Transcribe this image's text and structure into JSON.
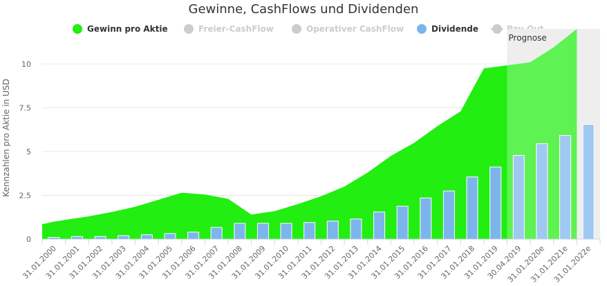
{
  "chart_data": {
    "type": "area",
    "title": "Gewinne, CashFlows und Dividenden",
    "ylabel": "Kennzahlen pro Aktie in USD",
    "xlabel": "",
    "ylim": [
      0,
      12
    ],
    "yticks": [
      0,
      2.5,
      5,
      7.5,
      10
    ],
    "ytick_labels": [
      "0",
      "2.5",
      "5",
      "7.5",
      "10"
    ],
    "categories": [
      "31.01.2000",
      "31.01.2001",
      "31.01.2002",
      "31.01.2003",
      "31.01.2004",
      "31.01.2005",
      "31.01.2006",
      "31.01.2007",
      "31.01.2008",
      "31.01.2009",
      "31.01.2010",
      "31.01.2011",
      "31.01.2012",
      "31.01.2013",
      "31.01.2014",
      "31.01.2015",
      "31.01.2016",
      "31.01.2017",
      "31.01.2018",
      "31.01.2019",
      "30.04.2019",
      "31.01.2020e",
      "31.01.2021e",
      "31.01.2022e"
    ],
    "forecast_label": "Prognose",
    "forecast_start_index": 20,
    "legend": [
      {
        "name": "Gewinn pro Aktie",
        "color": "#22ee11",
        "active": true
      },
      {
        "name": "Freier-CashFlow",
        "color": "#cccccc",
        "active": false
      },
      {
        "name": "Operativer CashFlow",
        "color": "#cccccc",
        "active": false
      },
      {
        "name": "Dividende",
        "color": "#7cb5ec",
        "active": true
      },
      {
        "name": "Pay-Out",
        "color": "#cccccc",
        "active": false
      }
    ],
    "series": [
      {
        "name": "Gewinn pro Aktie",
        "type": "area",
        "color": "#22ee11",
        "values": [
          0.85,
          1.0,
          1.1,
          1.3,
          1.55,
          1.85,
          2.25,
          2.65,
          2.55,
          2.3,
          1.4,
          1.6,
          2.0,
          2.45,
          3.0,
          3.8,
          4.75,
          5.5,
          6.45,
          7.3,
          9.75,
          10.1,
          10.95,
          12.0
        ],
        "x_offset": [
          -0.5,
          0,
          0.5,
          1.5,
          2.5,
          3.5,
          4.5,
          5.5,
          6.5,
          7.5,
          8.5,
          9.5,
          10.5,
          11.5,
          12.5,
          13.5,
          14.5,
          15.5,
          16.5,
          17.5,
          18.5,
          20.5,
          21.5,
          22.5
        ]
      },
      {
        "name": "Dividende",
        "type": "bar",
        "color": "#7cb5ec",
        "values": [
          0.1,
          0.15,
          0.15,
          0.2,
          0.25,
          0.32,
          0.4,
          0.67,
          0.9,
          0.9,
          0.9,
          0.95,
          1.03,
          1.15,
          1.55,
          1.88,
          2.35,
          2.75,
          3.55,
          4.12,
          4.78,
          5.45,
          5.92,
          6.55
        ]
      }
    ]
  }
}
